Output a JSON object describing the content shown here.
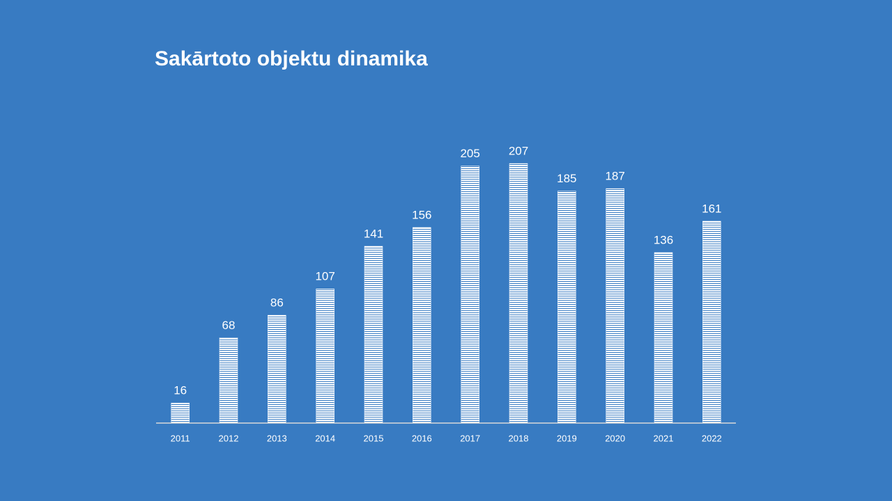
{
  "chart_data": {
    "type": "bar",
    "title": "Sakārtoto objektu dinamika",
    "categories": [
      "2011",
      "2012",
      "2013",
      "2014",
      "2015",
      "2016",
      "2017",
      "2018",
      "2019",
      "2020",
      "2021",
      "2022"
    ],
    "values": [
      16,
      68,
      86,
      107,
      141,
      156,
      205,
      207,
      185,
      187,
      136,
      161
    ],
    "color": "#ffffff",
    "ylim": [
      0,
      250
    ]
  }
}
